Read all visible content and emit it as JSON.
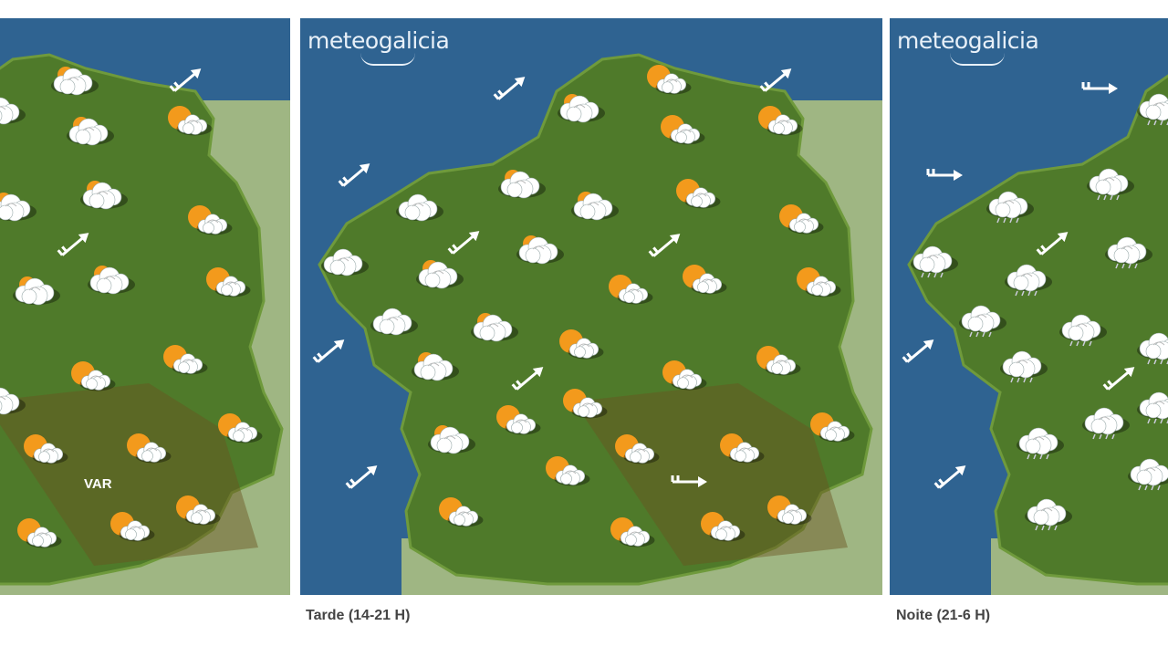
{
  "brand": "meteogalicia",
  "colors": {
    "sea": "#2f6391",
    "land": "#4f7a2a",
    "sun": "#f39a1c",
    "cloud": "#ffffff"
  },
  "panels": [
    {
      "caption": "",
      "label_var": "VAR",
      "icons": [
        "partly-cloudy",
        "partly-cloudy",
        "partly-cloudy",
        "partly-cloudy",
        "partly-cloudy",
        "partly-cloudy",
        "partly-cloudy",
        "partly-cloudy",
        "sun-cloud",
        "sun-cloud",
        "sun-cloud",
        "sun-cloud",
        "sun-cloud",
        "sun-cloud",
        "sun-cloud",
        "sun-cloud",
        "sun-cloud",
        "sun-cloud",
        "sun-cloud"
      ],
      "winds": [
        "wind-ne",
        "wind-ne"
      ]
    },
    {
      "caption": "Tarde (14-21 H)",
      "icons": [
        "partly-cloudy",
        "partly-cloudy",
        "cloud",
        "cloud",
        "partly-cloudy",
        "partly-cloudy",
        "partly-cloudy",
        "cloud",
        "partly-cloudy",
        "partly-cloudy",
        "partly-cloudy",
        "sun-cloud",
        "sun-cloud",
        "sun-cloud",
        "sun-cloud",
        "sun-cloud",
        "sun-cloud",
        "sun-cloud",
        "sun-cloud",
        "sun-cloud",
        "sun-cloud",
        "sun-cloud",
        "sun-cloud",
        "sun-cloud",
        "sun-cloud",
        "sun-cloud",
        "sun-cloud",
        "sun-cloud",
        "sun-cloud",
        "sun-cloud",
        "sun-cloud",
        "sun-cloud"
      ],
      "winds": [
        "wind-ne",
        "wind-ne",
        "wind-ne",
        "wind-ne",
        "wind-ne",
        "wind-ne",
        "wind-ne",
        "wind-ne",
        "wind-e"
      ]
    },
    {
      "caption": "Noite (21-6 H)",
      "icons": [
        "rain-cloud",
        "rain-cloud",
        "rain-cloud",
        "rain-cloud",
        "rain-cloud",
        "rain-cloud",
        "rain-cloud",
        "rain-cloud",
        "rain-cloud",
        "rain-cloud",
        "rain-cloud",
        "rain-cloud",
        "rain-cloud",
        "rain-cloud",
        "rain-cloud"
      ],
      "winds": [
        "wind-e",
        "wind-e",
        "wind-ne",
        "wind-ne",
        "wind-ne",
        "wind-ne"
      ]
    }
  ]
}
